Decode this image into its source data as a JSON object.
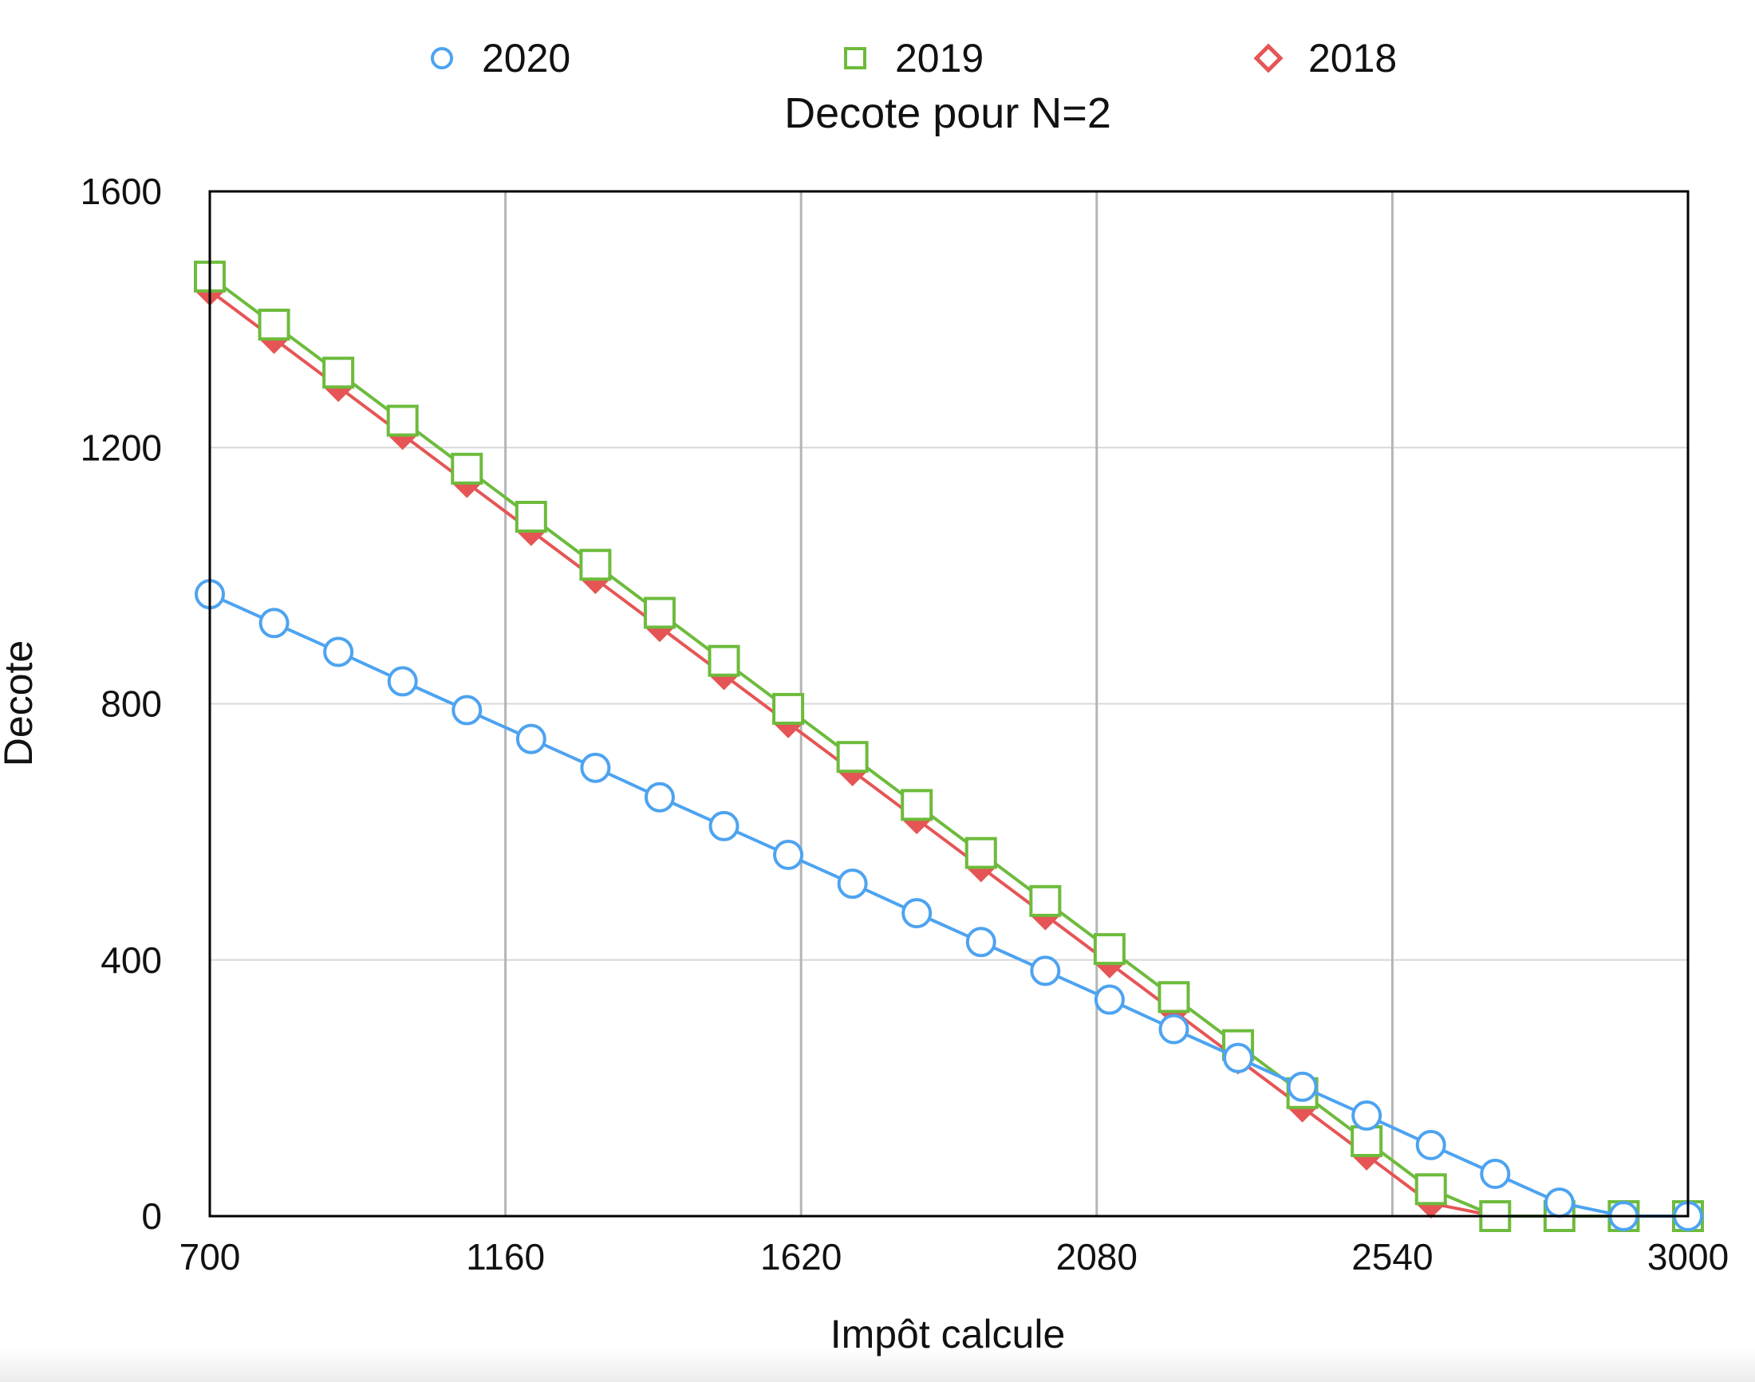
{
  "chart_data": {
    "type": "line",
    "title": "Decote pour N=2",
    "xlabel": "Impôt calcule",
    "ylabel": "Decote",
    "xlim": [
      700,
      3000
    ],
    "ylim": [
      0,
      1600
    ],
    "xticks": [
      700,
      1160,
      1620,
      2080,
      2540,
      3000
    ],
    "yticks": [
      0,
      400,
      800,
      1200,
      1600
    ],
    "grid": true,
    "legend_position": "top",
    "x": [
      700,
      800,
      900,
      1000,
      1100,
      1200,
      1300,
      1400,
      1500,
      1600,
      1700,
      1800,
      1900,
      2000,
      2100,
      2200,
      2300,
      2400,
      2500,
      2600,
      2700,
      2800,
      2900,
      3000
    ],
    "series": [
      {
        "name": "2020",
        "color": "#4da3f0",
        "marker": "circle",
        "values": [
          971,
          926,
          881,
          835,
          790,
          745,
          700,
          654,
          609,
          564,
          519,
          473,
          428,
          383,
          338,
          292,
          247,
          202,
          157,
          111,
          66,
          21,
          0,
          0
        ]
      },
      {
        "name": "2019",
        "color": "#6dbb3c",
        "marker": "square",
        "values": [
          1467,
          1392,
          1317,
          1242,
          1167,
          1092,
          1017,
          942,
          867,
          792,
          717,
          642,
          567,
          492,
          417,
          342,
          267,
          192,
          117,
          42,
          0,
          0,
          0,
          0
        ]
      },
      {
        "name": "2018",
        "color": "#e65555",
        "marker": "diamond",
        "values": [
          1445,
          1370,
          1295,
          1220,
          1145,
          1070,
          995,
          920,
          845,
          770,
          695,
          620,
          545,
          470,
          395,
          320,
          245,
          170,
          95,
          20,
          0,
          0,
          0,
          0
        ]
      }
    ]
  }
}
